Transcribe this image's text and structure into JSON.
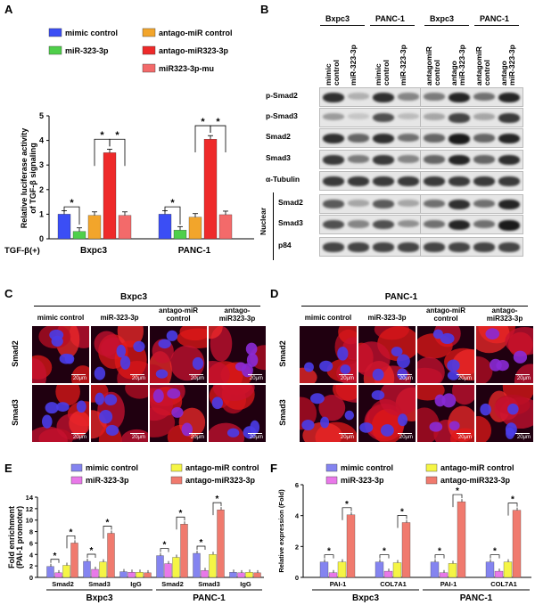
{
  "panels": {
    "A": "A",
    "B": "B",
    "C": "C",
    "D": "D",
    "E": "E",
    "F": "F"
  },
  "panelA": {
    "legend": [
      "mimic control",
      "antago-miR control",
      "miR-323-3p",
      "antago-miR323-3p",
      "miR323-3p-mu"
    ],
    "colors": [
      "#3b4ef5",
      "#f2a52b",
      "#4fcf4a",
      "#ee2a2a",
      "#f36a6a"
    ],
    "ylabel": "Relative luciferase activity\nof TGF-β signaling",
    "xlabel_left": "TGF-β(+)",
    "chart_data": {
      "type": "bar",
      "categories": [
        "Bxpc3",
        "PANC-1"
      ],
      "series": [
        {
          "name": "mimic control",
          "values": [
            1.0,
            1.0
          ]
        },
        {
          "name": "miR-323-3p",
          "values": [
            0.3,
            0.35
          ]
        },
        {
          "name": "antago-miR control",
          "values": [
            0.95,
            0.88
          ]
        },
        {
          "name": "antago-miR323-3p",
          "values": [
            3.5,
            4.05
          ]
        },
        {
          "name": "miR323-3p-mu",
          "values": [
            0.95,
            0.98
          ]
        }
      ],
      "ylim": [
        0,
        5
      ],
      "yticks": [
        "0",
        "1",
        "2",
        "3",
        "4",
        "5"
      ],
      "sig": "*"
    }
  },
  "panelB": {
    "groups": [
      "Bxpc3",
      "PANC-1",
      "Bxpc3",
      "PANC-1"
    ],
    "cols": [
      "mimic\ncontrol",
      "miR-323-3p",
      "mimic\ncontrol",
      "miR-323-3p",
      "antagomiR\ncontrol",
      "antago\nmiR-323-3p",
      "antagomiR\ncontrol",
      "antago\nmiR-323-3p"
    ],
    "rows": [
      "p-Smad2",
      "p-Smad3",
      "Smad2",
      "Smad3",
      "α-Tubulin",
      "Smad2",
      "Smad3",
      "p84"
    ],
    "nuclear": "Nuclear"
  },
  "panelC": {
    "title": "Bxpc3",
    "cols": [
      "mimic control",
      "miR-323-3p",
      "antago-miR\ncontrol",
      "antago-\nmiR323-3p"
    ],
    "rows": [
      "Smad2",
      "Smad3"
    ],
    "scale": "20μm"
  },
  "panelD": {
    "title": "PANC-1",
    "cols": [
      "mimic control",
      "miR-323-3p",
      "antago-miR\ncontrol",
      "antago-\nmiR323-3p"
    ],
    "rows": [
      "Smad2",
      "Smad3"
    ],
    "scale": "20μm"
  },
  "panelE": {
    "legend": [
      "mimic control",
      "antago-miR control",
      "miR-323-3p",
      "antago-miR323-3p"
    ],
    "colors": [
      "#8484f0",
      "#f5f545",
      "#e978e9",
      "#f07a6e"
    ],
    "ylabel": "Fold enrichment\n(PAI-1 promoter)",
    "chart_data": {
      "type": "bar",
      "categories": [
        "Smad2",
        "Smad3",
        "IgG",
        "Smad2",
        "Smad3",
        "IgG"
      ],
      "cell_lines": [
        "Bxpc3",
        "PANC-1"
      ],
      "series": [
        {
          "name": "mimic control",
          "values": [
            1.9,
            2.8,
            1.0,
            3.8,
            4.2,
            0.9
          ]
        },
        {
          "name": "miR-323-3p",
          "values": [
            0.8,
            1.4,
            0.9,
            2.4,
            1.2,
            0.8
          ]
        },
        {
          "name": "antago-miR control",
          "values": [
            2.1,
            2.7,
            0.9,
            3.5,
            4.0,
            0.9
          ]
        },
        {
          "name": "antago-miR323-3p",
          "values": [
            6.0,
            7.7,
            0.8,
            9.3,
            11.8,
            0.8
          ]
        }
      ],
      "ylim": [
        0,
        14
      ],
      "yticks": [
        "0",
        "2",
        "4",
        "6",
        "8",
        "10",
        "12",
        "14"
      ],
      "sig": "*"
    }
  },
  "panelF": {
    "legend": [
      "mimic control",
      "antago-miR control",
      "miR-323-3p",
      "antago-miR323-3p"
    ],
    "colors": [
      "#8484f0",
      "#f5f545",
      "#e978e9",
      "#f07a6e"
    ],
    "ylabel": "Relative expression (Fold)",
    "chart_data": {
      "type": "bar",
      "categories": [
        "PAI-1",
        "COL7A1",
        "PAI-1",
        "COL7A1"
      ],
      "cell_lines": [
        "Bxpc3",
        "PANC-1"
      ],
      "series": [
        {
          "name": "mimic control",
          "values": [
            1.0,
            1.0,
            1.0,
            1.0
          ]
        },
        {
          "name": "miR-323-3p",
          "values": [
            0.3,
            0.4,
            0.3,
            0.4
          ]
        },
        {
          "name": "antago-miR control",
          "values": [
            1.0,
            0.95,
            0.9,
            1.0
          ]
        },
        {
          "name": "antago-miR323-3p",
          "values": [
            4.05,
            3.55,
            4.9,
            4.35
          ]
        }
      ],
      "ylim": [
        0,
        6
      ],
      "yticks": [
        "0",
        "2",
        "4",
        "6"
      ],
      "sig": "*"
    }
  }
}
